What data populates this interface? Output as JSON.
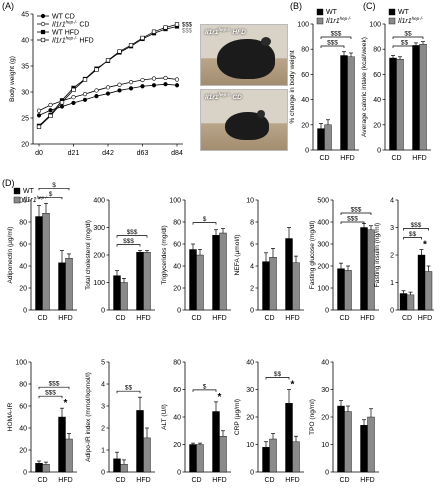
{
  "panel_letters": [
    "(A)",
    "(B)",
    "(C)",
    "(D)"
  ],
  "photos": [
    {
      "label": "Il1r1",
      "sup": "hep-/-",
      "suffix": " HFD"
    },
    {
      "label": "Il1r1",
      "sup": "hep-/-",
      "suffix": " CD"
    }
  ],
  "colors": {
    "wt": "#000000",
    "ko": "#8a8a8a"
  },
  "chart_data": [
    {
      "id": "A",
      "type": "line",
      "ylabel": "Body weight (g)",
      "ylim": [
        20,
        45
      ],
      "yticks": [
        20,
        25,
        30,
        35,
        40,
        45
      ],
      "xticks": [
        "d0",
        "d21",
        "d42",
        "d63",
        "d84"
      ],
      "x": [
        0,
        7,
        14,
        21,
        28,
        35,
        42,
        49,
        56,
        63,
        70,
        77,
        84
      ],
      "series": [
        {
          "name": "WT CD",
          "values": [
            25.5,
            26.5,
            27.2,
            27.9,
            28.5,
            29.2,
            29.7,
            30.3,
            30.7,
            31.1,
            31.3,
            31.5,
            31.3
          ]
        },
        {
          "name": "Il1r1hep-/- CD",
          "values": [
            26.4,
            27.5,
            28.3,
            29.0,
            29.6,
            30.3,
            30.9,
            31.4,
            31.9,
            32.3,
            32.6,
            32.7,
            32.4
          ]
        },
        {
          "name": "WT HFD",
          "values": [
            23.5,
            25.6,
            28.4,
            30.8,
            32.5,
            34.5,
            36.0,
            37.6,
            38.8,
            40.2,
            41.3,
            42.1,
            42.6
          ]
        },
        {
          "name": "Il1r1hep-/- HFD",
          "values": [
            23.3,
            25.4,
            28.0,
            30.4,
            32.4,
            34.3,
            36.1,
            37.8,
            39.0,
            40.4,
            41.6,
            42.4,
            43.0
          ]
        }
      ],
      "annotations": [
        "$$$",
        "$$$"
      ]
    },
    {
      "id": "B",
      "type": "bar",
      "ylabel": "% change in body weight",
      "ylim": [
        0,
        100
      ],
      "yticks": [
        0,
        20,
        40,
        60,
        80,
        100
      ],
      "categories": [
        "CD",
        "HFD"
      ],
      "series": [
        {
          "name": "WT",
          "values": [
            17,
            75
          ],
          "errors": [
            4,
            3
          ]
        },
        {
          "name": "Il1r1hep-/-",
          "values": [
            20,
            74
          ],
          "errors": [
            4,
            3
          ]
        }
      ],
      "brackets": [
        "$$$",
        "$$$"
      ]
    },
    {
      "id": "C",
      "type": "bar",
      "ylabel": "Average caloric intake (kcal/week)",
      "ylim": [
        0,
        100
      ],
      "yticks": [
        0,
        20,
        40,
        60,
        80,
        100
      ],
      "categories": [
        "CD",
        "HFD"
      ],
      "series": [
        {
          "name": "WT",
          "values": [
            73,
            83
          ],
          "errors": [
            2,
            2
          ]
        },
        {
          "name": "Il1r1hep-/-",
          "values": [
            72,
            84
          ],
          "errors": [
            2,
            2
          ]
        }
      ],
      "brackets": [
        "$$",
        "$$"
      ]
    },
    {
      "id": "D1",
      "type": "bar",
      "ylabel": "Adiponectin (µg/ml)",
      "ylim": [
        0,
        100
      ],
      "yticks": [
        0,
        20,
        40,
        60,
        80,
        100
      ],
      "categories": [
        "CD",
        "HFD"
      ],
      "series": [
        {
          "name": "WT",
          "values": [
            85,
            43
          ],
          "errors": [
            10,
            11
          ]
        },
        {
          "name": "Il1r1hep-/-",
          "values": [
            88,
            47
          ],
          "errors": [
            9,
            4
          ]
        }
      ],
      "brackets": [
        "$",
        "$"
      ],
      "stars": []
    },
    {
      "id": "D2",
      "type": "bar",
      "ylabel": "Total cholesterol (mg/dl)",
      "ylim": [
        0,
        400
      ],
      "yticks": [
        0,
        100,
        200,
        300,
        400
      ],
      "categories": [
        "CD",
        "HFD"
      ],
      "series": [
        {
          "name": "WT",
          "values": [
            125,
            210
          ],
          "errors": [
            18,
            6
          ]
        },
        {
          "name": "Il1r1hep-/-",
          "values": [
            100,
            210
          ],
          "errors": [
            15,
            6
          ]
        }
      ],
      "brackets": [
        "$$$",
        "$$$"
      ],
      "stars": []
    },
    {
      "id": "D3",
      "type": "bar",
      "ylabel": "Triglycerides (mg/dl)",
      "ylim": [
        0,
        100
      ],
      "yticks": [
        0,
        20,
        40,
        60,
        80,
        100
      ],
      "categories": [
        "CD",
        "HFD"
      ],
      "series": [
        {
          "name": "WT",
          "values": [
            55,
            68
          ],
          "errors": [
            5,
            5
          ]
        },
        {
          "name": "Il1r1hep-/-",
          "values": [
            50,
            70
          ],
          "errors": [
            5,
            4
          ]
        }
      ],
      "brackets": [
        "$"
      ],
      "stars": []
    },
    {
      "id": "D4",
      "type": "bar",
      "ylabel": "NEFA (µmol/l)",
      "ylim": [
        0,
        10
      ],
      "yticks": [
        0,
        2,
        4,
        6,
        8,
        10
      ],
      "categories": [
        "CD",
        "HFD"
      ],
      "series": [
        {
          "name": "WT",
          "values": [
            4.4,
            6.5
          ],
          "errors": [
            0.8,
            1.0
          ]
        },
        {
          "name": "Il1r1hep-/-",
          "values": [
            4.8,
            4.3
          ],
          "errors": [
            0.8,
            0.6
          ]
        }
      ],
      "brackets": [],
      "stars": []
    },
    {
      "id": "D5",
      "type": "bar",
      "ylabel": "Fasting glucose (mg/dl)",
      "ylim": [
        0,
        500
      ],
      "yticks": [
        0,
        100,
        200,
        300,
        400,
        500
      ],
      "categories": [
        "CD",
        "HFD"
      ],
      "series": [
        {
          "name": "WT",
          "values": [
            188,
            375
          ],
          "errors": [
            25,
            18
          ]
        },
        {
          "name": "Il1r1hep-/-",
          "values": [
            180,
            365
          ],
          "errors": [
            20,
            18
          ]
        }
      ],
      "brackets": [
        "$$$",
        "$$$"
      ],
      "stars": []
    },
    {
      "id": "D6",
      "type": "bar",
      "ylabel": "Fasting insulin (ng/ml)",
      "ylim": [
        0,
        4
      ],
      "yticks": [
        0,
        1,
        2,
        3,
        4
      ],
      "categories": [
        "CD",
        "HFD"
      ],
      "series": [
        {
          "name": "WT",
          "values": [
            0.6,
            2.0
          ],
          "errors": [
            0.1,
            0.2
          ]
        },
        {
          "name": "Il1r1hep-/-",
          "values": [
            0.55,
            1.4
          ],
          "errors": [
            0.1,
            0.2
          ]
        }
      ],
      "brackets": [
        "$$",
        "$$$"
      ],
      "stars": [
        "*"
      ]
    },
    {
      "id": "D7",
      "type": "bar",
      "ylabel": "HOMA-IR",
      "ylim": [
        0,
        100
      ],
      "yticks": [
        0,
        20,
        40,
        60,
        80,
        100
      ],
      "categories": [
        "CD",
        "HFD"
      ],
      "series": [
        {
          "name": "WT",
          "values": [
            8,
            50
          ],
          "errors": [
            2,
            8
          ]
        },
        {
          "name": "Il1r1hep-/-",
          "values": [
            7,
            30
          ],
          "errors": [
            2,
            5
          ]
        }
      ],
      "brackets": [
        "$$$",
        "$$$"
      ],
      "stars": [
        "*"
      ]
    },
    {
      "id": "D8",
      "type": "bar",
      "ylabel": "Adipo-IR index (mmol/lxpmol/l)",
      "ylim": [
        0,
        5
      ],
      "yticks": [
        0,
        1,
        2,
        3,
        4,
        5
      ],
      "categories": [
        "CD",
        "HFD"
      ],
      "series": [
        {
          "name": "WT",
          "values": [
            0.6,
            2.8
          ],
          "errors": [
            0.3,
            0.6
          ]
        },
        {
          "name": "Il1r1hep-/-",
          "values": [
            0.35,
            1.55
          ],
          "errors": [
            0.2,
            0.45
          ]
        }
      ],
      "brackets": [
        "$$"
      ],
      "stars": []
    },
    {
      "id": "D9",
      "type": "bar",
      "ylabel": "ALT (U/l)",
      "ylim": [
        0,
        80
      ],
      "yticks": [
        0,
        20,
        40,
        60,
        80
      ],
      "categories": [
        "CD",
        "HFD"
      ],
      "series": [
        {
          "name": "WT",
          "values": [
            20,
            44
          ],
          "errors": [
            1,
            7
          ]
        },
        {
          "name": "Il1r1hep-/-",
          "values": [
            20,
            26
          ],
          "errors": [
            1,
            4
          ]
        }
      ],
      "brackets": [
        "$"
      ],
      "stars": [
        "*"
      ]
    },
    {
      "id": "D10",
      "type": "bar",
      "ylabel": "CRP (µg/ml)",
      "ylim": [
        0,
        40
      ],
      "yticks": [
        0,
        10,
        20,
        30,
        40
      ],
      "categories": [
        "CD",
        "HFD"
      ],
      "series": [
        {
          "name": "WT",
          "values": [
            9,
            25
          ],
          "errors": [
            2,
            5
          ]
        },
        {
          "name": "Il1r1hep-/-",
          "values": [
            12,
            11
          ],
          "errors": [
            2,
            2
          ]
        }
      ],
      "brackets": [
        "$$"
      ],
      "stars": [
        "*"
      ]
    },
    {
      "id": "D11",
      "type": "bar",
      "ylabel": "TPO (ng/ml)",
      "ylim": [
        0,
        40
      ],
      "yticks": [
        0,
        10,
        20,
        30,
        40
      ],
      "categories": [
        "CD",
        "HFD"
      ],
      "series": [
        {
          "name": "WT",
          "values": [
            24,
            17
          ],
          "errors": [
            2,
            2
          ]
        },
        {
          "name": "Il1r1hep-/-",
          "values": [
            22,
            20
          ],
          "errors": [
            2,
            3
          ]
        }
      ],
      "brackets": [],
      "stars": []
    }
  ]
}
